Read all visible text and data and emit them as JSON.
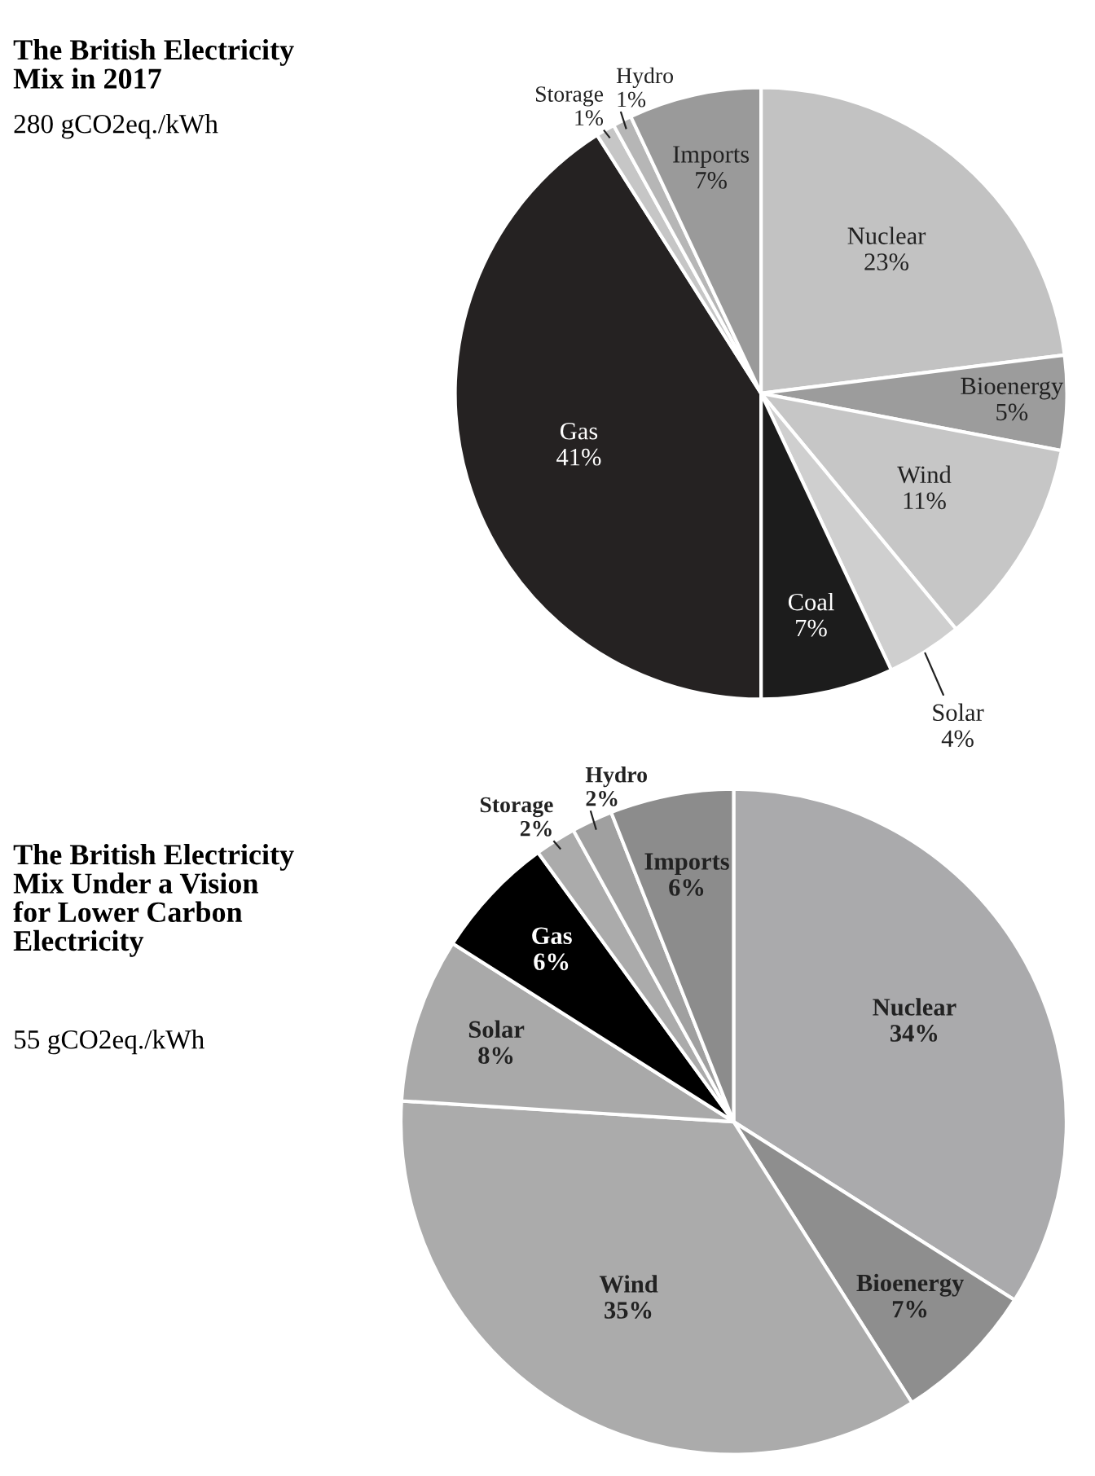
{
  "chart_data": [
    {
      "type": "pie",
      "title": "The British Electricity\nMix in 2017",
      "subtitle": "280 gCO2eq./kWh",
      "categories": [
        "Nuclear",
        "Bioenergy",
        "Wind",
        "Solar",
        "Coal",
        "Gas",
        "Storage",
        "Hydro",
        "Imports"
      ],
      "values": [
        23,
        5,
        11,
        4,
        7,
        41,
        1,
        1,
        7
      ],
      "value_labels": [
        "23%",
        "5%",
        "11%",
        "4%",
        "7%",
        "41%",
        "1%",
        "1%",
        "7%"
      ],
      "colors": [
        "#c2c2c2",
        "#9c9c9c",
        "#c6c6c6",
        "#cfcfcf",
        "#1c1c1c",
        "#252222",
        "#c6c6c6",
        "#b6b6b6",
        "#9a9a9a"
      ]
    },
    {
      "type": "pie",
      "title": "The British Electricity\nMix Under a Vision\nfor Lower Carbon\nElectricity",
      "subtitle": "55 gCO2eq./kWh",
      "categories": [
        "Nuclear",
        "Bioenergy",
        "Wind",
        "Solar",
        "Gas",
        "Storage",
        "Hydro",
        "Imports"
      ],
      "values": [
        34,
        7,
        35,
        8,
        6,
        2,
        2,
        6
      ],
      "value_labels": [
        "34%",
        "7%",
        "35%",
        "8%",
        "6%",
        "2%",
        "2%",
        "6%"
      ],
      "colors": [
        "#aaaaac",
        "#8e8e8e",
        "#ababab",
        "#a9a9a9",
        "#000000",
        "#ababab",
        "#a0a0a0",
        "#8c8c8c"
      ]
    }
  ]
}
